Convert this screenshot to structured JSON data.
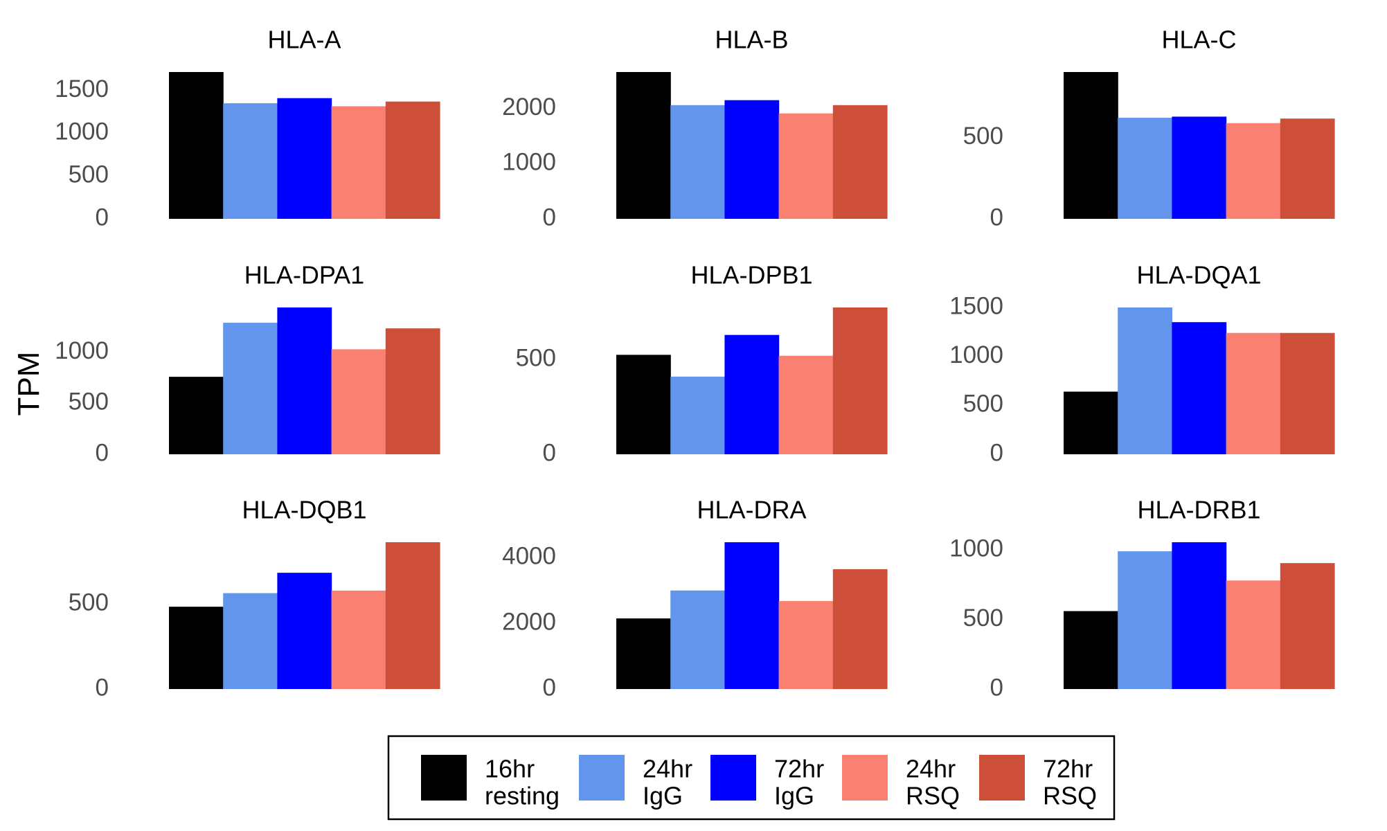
{
  "chart_data": {
    "type": "bar",
    "ylabel": "TPM",
    "xlabel": "",
    "categories": [
      "16hr resting",
      "24hr IgG",
      "72hr IgG",
      "24hr RSQ",
      "72hr RSQ"
    ],
    "legend": {
      "placement": "bottom",
      "items": [
        {
          "line1": "16hr",
          "line2": "resting",
          "color": "#000000"
        },
        {
          "line1": "24hr",
          "line2": "IgG",
          "color": "#6495ED"
        },
        {
          "line1": "72hr",
          "line2": "IgG",
          "color": "#0000FF"
        },
        {
          "line1": "24hr",
          "line2": "RSQ",
          "color": "#FA8072"
        },
        {
          "line1": "72hr",
          "line2": "RSQ",
          "color": "#CD4F39"
        }
      ]
    },
    "grid": false,
    "panels": [
      {
        "title": "HLA-A",
        "values": [
          1715,
          1350,
          1410,
          1315,
          1370
        ],
        "ylim": [
          0,
          1715
        ],
        "yticks": [
          0,
          500,
          1000,
          1500
        ]
      },
      {
        "title": "HLA-B",
        "values": [
          2660,
          2060,
          2150,
          1910,
          2060
        ],
        "ylim": [
          0,
          2660
        ],
        "yticks": [
          0,
          1000,
          2000
        ]
      },
      {
        "title": "HLA-C",
        "values": [
          905,
          623,
          630,
          590,
          618
        ],
        "ylim": [
          0,
          905
        ],
        "yticks": [
          0,
          500
        ]
      },
      {
        "title": "HLA-DPA1",
        "values": [
          760,
          1290,
          1440,
          1030,
          1235
        ],
        "ylim": [
          0,
          1440
        ],
        "yticks": [
          0,
          500,
          1000
        ]
      },
      {
        "title": "HLA-DPB1",
        "values": [
          525,
          410,
          630,
          520,
          775
        ],
        "ylim": [
          0,
          775
        ],
        "yticks": [
          0,
          500
        ]
      },
      {
        "title": "HLA-DQA1",
        "values": [
          640,
          1500,
          1350,
          1240,
          1240
        ],
        "ylim": [
          0,
          1500
        ],
        "yticks": [
          0,
          500,
          1000,
          1500
        ]
      },
      {
        "title": "HLA-DQB1",
        "values": [
          485,
          565,
          685,
          580,
          865
        ],
        "ylim": [
          0,
          865
        ],
        "yticks": [
          0,
          500
        ]
      },
      {
        "title": "HLA-DRA",
        "values": [
          2150,
          3000,
          4470,
          2680,
          3650
        ],
        "ylim": [
          0,
          4470
        ],
        "yticks": [
          0,
          2000,
          4000
        ]
      },
      {
        "title": "HLA-DRB1",
        "values": [
          560,
          990,
          1055,
          780,
          905
        ],
        "ylim": [
          0,
          1055
        ],
        "yticks": [
          0,
          500,
          1000
        ]
      }
    ]
  }
}
